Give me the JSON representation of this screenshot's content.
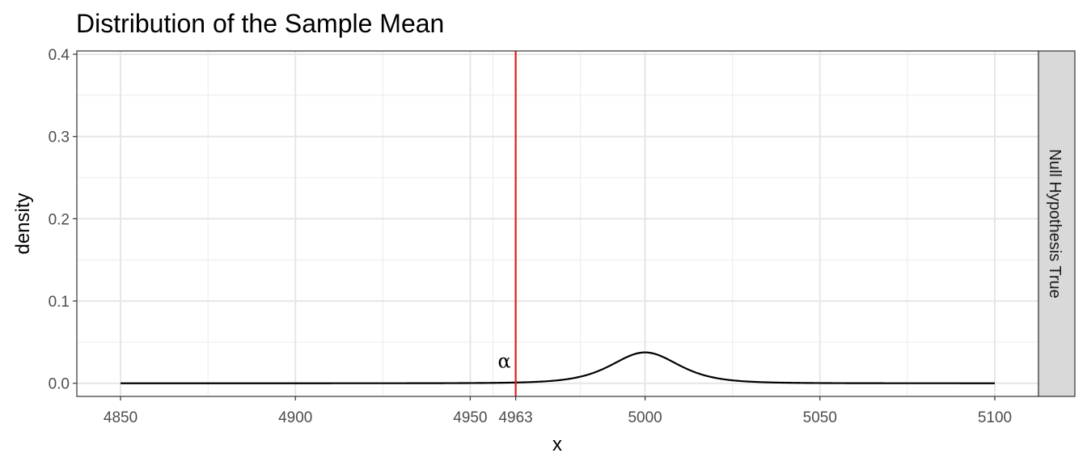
{
  "chart_data": {
    "type": "area",
    "title": "Distribution of the Sample Mean",
    "xlabel": "x",
    "ylabel": "density",
    "facet_label": "Null Hypothesis True",
    "xlim": [
      4850,
      5100
    ],
    "ylim": [
      0,
      0.4
    ],
    "x_ticks": [
      4850,
      4900,
      4950,
      4963,
      5000,
      5050,
      5100
    ],
    "y_ticks": [
      0.0,
      0.1,
      0.2,
      0.3,
      0.4
    ],
    "y_tick_labels": [
      "0.0",
      "0.1",
      "0.2",
      "0.3",
      "0.4"
    ],
    "grid": true,
    "distribution": {
      "family": "t",
      "location": 5000,
      "scale": 10,
      "df": 4
    },
    "critical_value": 4963,
    "shaded_region": {
      "from": 4850,
      "to": 4963,
      "label": "α"
    },
    "colors": {
      "curve": "#000000",
      "shade": "#b3b3b3",
      "critical_line": "#e41a1c",
      "strip_bg": "#d9d9d9"
    }
  }
}
